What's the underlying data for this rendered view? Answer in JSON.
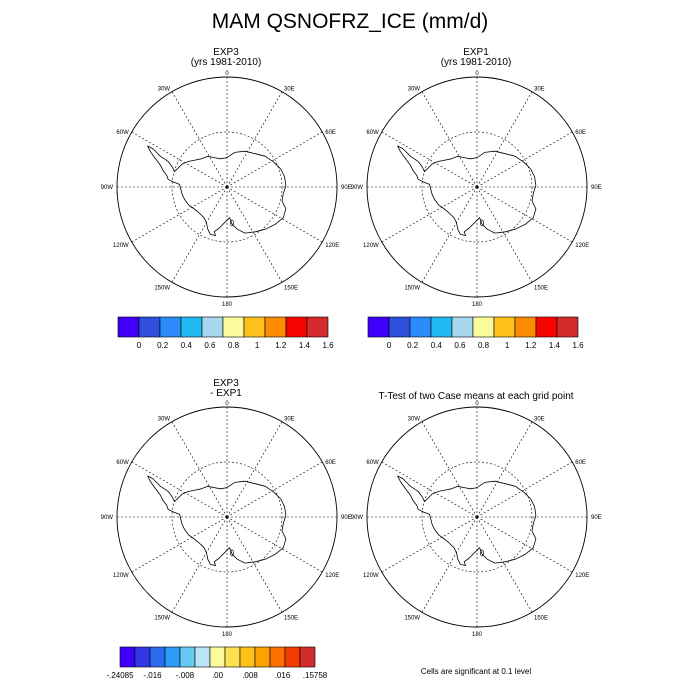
{
  "title": "MAM QSNOFRZ_ICE (mm/d)",
  "panels": [
    {
      "id": "exp3",
      "title_line1": "EXP3",
      "title_line2": "(yrs 1981-2010)"
    },
    {
      "id": "exp1",
      "title_line1": "EXP1",
      "title_line2": "(yrs 1981-2010)"
    },
    {
      "id": "diff",
      "title_line1": "EXP3",
      "title_line2": "- EXP1"
    },
    {
      "id": "ttest",
      "title_line1": "T-Test of two Case means at each grid point",
      "title_line2": ""
    }
  ],
  "longitude_labels": {
    "deg0": "0",
    "e30": "30E",
    "e60": "60E",
    "e90": "90E",
    "e120": "120E",
    "e150": "150E",
    "deg180": "180",
    "w150": "150W",
    "w120": "120W",
    "w90": "90W",
    "w60": "60W",
    "w30": "30W"
  },
  "colorbar_main": {
    "colors": [
      "#3e00f8",
      "#2f50dc",
      "#2c8cfa",
      "#21b9f2",
      "#a6d8f0",
      "#fbfb9c",
      "#fdc11a",
      "#fb8b00",
      "#f60400",
      "#d42c2c"
    ],
    "labels": [
      "0",
      "0.2",
      "0.4",
      "0.6",
      "0.8",
      "1",
      "1.2",
      "1.4",
      "1.6"
    ]
  },
  "colorbar_diff": {
    "colors": [
      "#3e00f8",
      "#3136e6",
      "#2c6bee",
      "#2c9cf6",
      "#68c8f4",
      "#b8e4f6",
      "#fbfb9c",
      "#fde150",
      "#fdc11a",
      "#fca200",
      "#fb7100",
      "#f53c00",
      "#d42c2c"
    ],
    "labels": [
      "-.24085",
      "-.016",
      "-.008",
      ".00",
      ".008",
      ".016",
      ".15758"
    ]
  },
  "footnote": "Cells are significant at 0.1 level"
}
